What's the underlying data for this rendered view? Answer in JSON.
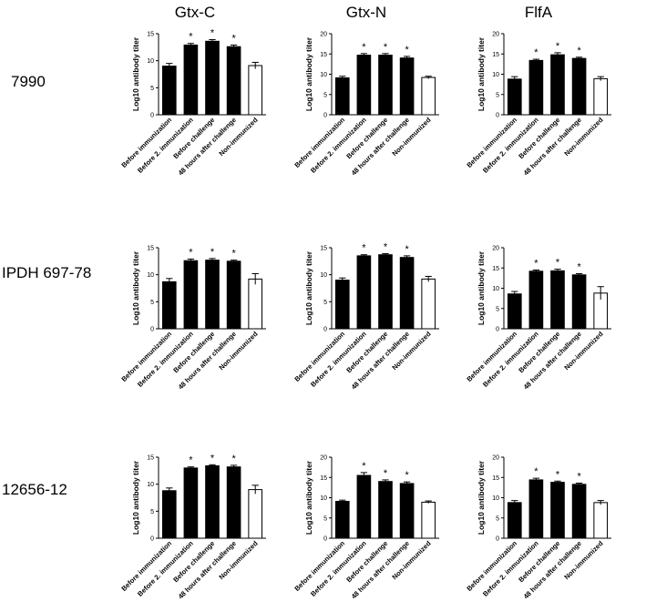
{
  "column_titles": [
    "Gtx-C",
    "Gtx-N",
    "FlfA"
  ],
  "row_labels": [
    "7990",
    "IPDH 697-78",
    "12656-12"
  ],
  "chart_data": [
    {
      "type": "bar",
      "panel": "7990 / Gtx-C",
      "ylabel": "Log10 antibody titer",
      "ylim": [
        0,
        15
      ],
      "yticks": [
        0,
        5,
        10,
        15
      ],
      "categories": [
        "Before immunization",
        "Before 2. immunization",
        "Before challenge",
        "48 hours after challenge",
        "Non-immunized"
      ],
      "values": [
        9,
        12.9,
        13.6,
        12.6,
        9.1
      ],
      "errors": [
        0.5,
        0.3,
        0.3,
        0.3,
        0.6
      ],
      "significant": [
        false,
        true,
        true,
        true,
        false
      ],
      "colors": [
        "#000000",
        "#000000",
        "#000000",
        "#000000",
        "#ffffff"
      ]
    },
    {
      "type": "bar",
      "panel": "7990 / Gtx-N",
      "ylabel": "Log10 antibody titer",
      "ylim": [
        0,
        20
      ],
      "yticks": [
        0,
        5,
        10,
        15,
        20
      ],
      "categories": [
        "Before immunization",
        "Before 2. immunization",
        "Before challenge",
        "48 hours after challenge",
        "Non-immunized"
      ],
      "values": [
        9.1,
        14.7,
        14.7,
        14,
        9.2
      ],
      "errors": [
        0.4,
        0.4,
        0.4,
        0.4,
        0.3
      ],
      "significant": [
        false,
        true,
        true,
        true,
        false
      ],
      "colors": [
        "#000000",
        "#000000",
        "#000000",
        "#000000",
        "#ffffff"
      ]
    },
    {
      "type": "bar",
      "panel": "7990 / FlfA",
      "ylabel": "Log10 antibody titer",
      "ylim": [
        0,
        20
      ],
      "yticks": [
        0,
        5,
        10,
        15,
        20
      ],
      "categories": [
        "Before immunization",
        "Before 2. immunization",
        "Before challenge",
        "48 hours after challenge",
        "Non-immunized"
      ],
      "values": [
        8.8,
        13.4,
        14.8,
        13.9,
        8.9
      ],
      "errors": [
        0.6,
        0.3,
        0.5,
        0.3,
        0.5
      ],
      "significant": [
        false,
        true,
        true,
        true,
        false
      ],
      "colors": [
        "#000000",
        "#000000",
        "#000000",
        "#000000",
        "#ffffff"
      ]
    },
    {
      "type": "bar",
      "panel": "IPDH 697-78 / Gtx-C",
      "ylabel": "Log10 antibody titer",
      "ylim": [
        0,
        15
      ],
      "yticks": [
        0,
        5,
        10,
        15
      ],
      "categories": [
        "Before immunization",
        "Before 2. immunization",
        "Before challenge",
        "48 hours after challenge",
        "Non-immunized"
      ],
      "values": [
        8.7,
        12.6,
        12.7,
        12.5,
        9.2
      ],
      "errors": [
        0.6,
        0.3,
        0.3,
        0.2,
        1.0
      ],
      "significant": [
        false,
        true,
        true,
        true,
        false
      ],
      "colors": [
        "#000000",
        "#000000",
        "#000000",
        "#000000",
        "#ffffff"
      ]
    },
    {
      "type": "bar",
      "panel": "IPDH 697-78 / Gtx-N",
      "ylabel": "Log10 antibody titer",
      "ylim": [
        0,
        15
      ],
      "yticks": [
        0,
        5,
        10,
        15
      ],
      "categories": [
        "Before immunization",
        "Before 2. immunization",
        "Before challenge",
        "48 hours after challenge",
        "Non-immunized"
      ],
      "values": [
        9,
        13.5,
        13.7,
        13.2,
        9.2
      ],
      "errors": [
        0.4,
        0.2,
        0.2,
        0.3,
        0.5
      ],
      "significant": [
        false,
        true,
        true,
        true,
        false
      ],
      "colors": [
        "#000000",
        "#000000",
        "#000000",
        "#000000",
        "#ffffff"
      ]
    },
    {
      "type": "bar",
      "panel": "IPDH 697-78 / FlfA",
      "ylabel": "Log10 antibody titer",
      "ylim": [
        0,
        20
      ],
      "yticks": [
        0,
        5,
        10,
        15,
        20
      ],
      "categories": [
        "Before immunization",
        "Before 2. immunization",
        "Before challenge",
        "48 hours after challenge",
        "Non-immunized"
      ],
      "values": [
        8.6,
        14.2,
        14.3,
        13.3,
        8.8
      ],
      "errors": [
        0.6,
        0.3,
        0.4,
        0.3,
        1.6
      ],
      "significant": [
        false,
        true,
        true,
        true,
        false
      ],
      "colors": [
        "#000000",
        "#000000",
        "#000000",
        "#000000",
        "#ffffff"
      ]
    },
    {
      "type": "bar",
      "panel": "12656-12 / Gtx-C",
      "ylabel": "Log10 antibody titer",
      "ylim": [
        0,
        15
      ],
      "yticks": [
        0,
        5,
        10,
        15
      ],
      "categories": [
        "Before immunization",
        "Before 2. immunization",
        "Before challenge",
        "48 hours after challenge",
        "Non-immunized"
      ],
      "values": [
        8.8,
        13,
        13.4,
        13.2,
        9
      ],
      "errors": [
        0.5,
        0.2,
        0.2,
        0.3,
        0.8
      ],
      "significant": [
        false,
        true,
        true,
        true,
        false
      ],
      "colors": [
        "#000000",
        "#000000",
        "#000000",
        "#000000",
        "#ffffff"
      ]
    },
    {
      "type": "bar",
      "panel": "12656-12 / Gtx-N",
      "ylabel": "Log10 antibody titer",
      "ylim": [
        0,
        20
      ],
      "yticks": [
        0,
        5,
        10,
        15,
        20
      ],
      "categories": [
        "Before immunization",
        "Before 2. immunization",
        "Before challenge",
        "48 hours after challenge",
        "Non-immunized"
      ],
      "values": [
        9.1,
        15.5,
        14,
        13.5,
        8.9
      ],
      "errors": [
        0.3,
        0.7,
        0.4,
        0.4,
        0.3
      ],
      "significant": [
        false,
        true,
        true,
        true,
        false
      ],
      "colors": [
        "#000000",
        "#000000",
        "#000000",
        "#000000",
        "#ffffff"
      ]
    },
    {
      "type": "bar",
      "panel": "12656-12 / FlfA",
      "ylabel": "Log10 antibody titer",
      "ylim": [
        0,
        20
      ],
      "yticks": [
        0,
        5,
        10,
        15,
        20
      ],
      "categories": [
        "Before immunization",
        "Before 2. immunization",
        "Before challenge",
        "48 hours after challenge",
        "Non-immunized"
      ],
      "values": [
        8.8,
        14.4,
        13.8,
        13.3,
        8.8
      ],
      "errors": [
        0.5,
        0.4,
        0.3,
        0.3,
        0.5
      ],
      "significant": [
        false,
        true,
        true,
        true,
        false
      ],
      "colors": [
        "#000000",
        "#000000",
        "#000000",
        "#000000",
        "#ffffff"
      ]
    }
  ]
}
